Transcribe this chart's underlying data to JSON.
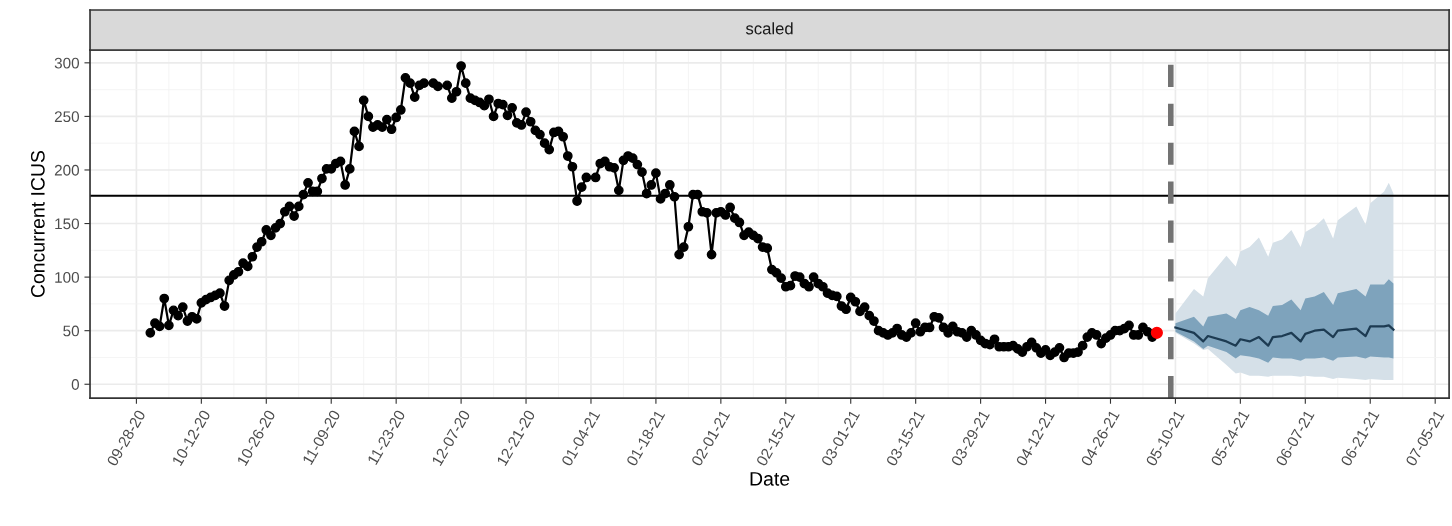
{
  "chart_data": {
    "type": "line",
    "title": "scaled",
    "xlabel": "Date",
    "ylabel": "Concurrent ICUS",
    "xlim": [
      "2020-09-18",
      "2021-07-08"
    ],
    "ylim": [
      -13,
      312
    ],
    "yticks": [
      0,
      50,
      100,
      150,
      200,
      250,
      300
    ],
    "xticks": [
      {
        "value": "2020-09-28",
        "label": "09-28-20"
      },
      {
        "value": "2020-10-12",
        "label": "10-12-20"
      },
      {
        "value": "2020-10-26",
        "label": "10-26-20"
      },
      {
        "value": "2020-11-09",
        "label": "11-09-20"
      },
      {
        "value": "2020-11-23",
        "label": "11-23-20"
      },
      {
        "value": "2020-12-07",
        "label": "12-07-20"
      },
      {
        "value": "2020-12-21",
        "label": "12-21-20"
      },
      {
        "value": "2021-01-04",
        "label": "01-04-21"
      },
      {
        "value": "2021-01-18",
        "label": "01-18-21"
      },
      {
        "value": "2021-02-01",
        "label": "02-01-21"
      },
      {
        "value": "2021-02-15",
        "label": "02-15-21"
      },
      {
        "value": "2021-03-01",
        "label": "03-01-21"
      },
      {
        "value": "2021-03-15",
        "label": "03-15-21"
      },
      {
        "value": "2021-03-29",
        "label": "03-29-21"
      },
      {
        "value": "2021-04-12",
        "label": "04-12-21"
      },
      {
        "value": "2021-04-26",
        "label": "04-26-21"
      },
      {
        "value": "2021-05-10",
        "label": "05-10-21"
      },
      {
        "value": "2021-05-24",
        "label": "05-24-21"
      },
      {
        "value": "2021-06-07",
        "label": "06-07-21"
      },
      {
        "value": "2021-06-21",
        "label": "06-21-21"
      },
      {
        "value": "2021-07-05",
        "label": "07-05-21"
      }
    ],
    "grid": true,
    "line_style": "solid",
    "ref_lines": [
      {
        "axis": "y",
        "value": 176,
        "color": "#000000",
        "line_style": "solid"
      },
      {
        "axis": "x",
        "value": "2021-05-09",
        "color": "#737373",
        "line_style": "dashed"
      }
    ],
    "series": [
      {
        "color": "#000000",
        "marker": "circle",
        "x": [
          "2020-10-01",
          "2020-10-02",
          "2020-10-03",
          "2020-10-04",
          "2020-10-05",
          "2020-10-06",
          "2020-10-07",
          "2020-10-08",
          "2020-10-09",
          "2020-10-10",
          "2020-10-11",
          "2020-10-12",
          "2020-10-13",
          "2020-10-14",
          "2020-10-15",
          "2020-10-16",
          "2020-10-17",
          "2020-10-18",
          "2020-10-19",
          "2020-10-20",
          "2020-10-21",
          "2020-10-22",
          "2020-10-23",
          "2020-10-24",
          "2020-10-25",
          "2020-10-26",
          "2020-10-27",
          "2020-10-28",
          "2020-10-29",
          "2020-10-30",
          "2020-10-31",
          "2020-11-01",
          "2020-11-02",
          "2020-11-03",
          "2020-11-04",
          "2020-11-05",
          "2020-11-06",
          "2020-11-07",
          "2020-11-08",
          "2020-11-09",
          "2020-11-10",
          "2020-11-11",
          "2020-11-12",
          "2020-11-13",
          "2020-11-14",
          "2020-11-15",
          "2020-11-16",
          "2020-11-17",
          "2020-11-18",
          "2020-11-19",
          "2020-11-20",
          "2020-11-21",
          "2020-11-22",
          "2020-11-23",
          "2020-11-24",
          "2020-11-25",
          "2020-11-26",
          "2020-11-27",
          "2020-11-28",
          "2020-11-29",
          "2020-12-01",
          "2020-12-02",
          "2020-12-04",
          "2020-12-05",
          "2020-12-06",
          "2020-12-07",
          "2020-12-08",
          "2020-12-09",
          "2020-12-10",
          "2020-12-11",
          "2020-12-12",
          "2020-12-13",
          "2020-12-14",
          "2020-12-15",
          "2020-12-16",
          "2020-12-17",
          "2020-12-18",
          "2020-12-19",
          "2020-12-20",
          "2020-12-21",
          "2020-12-22",
          "2020-12-23",
          "2020-12-24",
          "2020-12-25",
          "2020-12-26",
          "2020-12-27",
          "2020-12-28",
          "2020-12-29",
          "2020-12-30",
          "2020-12-31",
          "2021-01-01",
          "2021-01-02",
          "2021-01-03",
          "2021-01-05",
          "2021-01-06",
          "2021-01-07",
          "2021-01-08",
          "2021-01-09",
          "2021-01-10",
          "2021-01-11",
          "2021-01-12",
          "2021-01-13",
          "2021-01-14",
          "2021-01-15",
          "2021-01-16",
          "2021-01-17",
          "2021-01-18",
          "2021-01-19",
          "2021-01-20",
          "2021-01-21",
          "2021-01-22",
          "2021-01-23",
          "2021-01-24",
          "2021-01-25",
          "2021-01-26",
          "2021-01-27",
          "2021-01-28",
          "2021-01-29",
          "2021-01-30",
          "2021-01-31",
          "2021-02-01",
          "2021-02-02",
          "2021-02-03",
          "2021-02-04",
          "2021-02-05",
          "2021-02-06",
          "2021-02-07",
          "2021-02-08",
          "2021-02-09",
          "2021-02-10",
          "2021-02-11",
          "2021-02-12",
          "2021-02-13",
          "2021-02-14",
          "2021-02-15",
          "2021-02-16",
          "2021-02-17",
          "2021-02-18",
          "2021-02-19",
          "2021-02-20",
          "2021-02-21",
          "2021-02-22",
          "2021-02-23",
          "2021-02-24",
          "2021-02-25",
          "2021-02-26",
          "2021-02-27",
          "2021-02-28",
          "2021-03-01",
          "2021-03-02",
          "2021-03-03",
          "2021-03-04",
          "2021-03-05",
          "2021-03-06",
          "2021-03-07",
          "2021-03-08",
          "2021-03-09",
          "2021-03-10",
          "2021-03-11",
          "2021-03-12",
          "2021-03-13",
          "2021-03-14",
          "2021-03-15",
          "2021-03-16",
          "2021-03-17",
          "2021-03-18",
          "2021-03-19",
          "2021-03-20",
          "2021-03-21",
          "2021-03-22",
          "2021-03-23",
          "2021-03-24",
          "2021-03-25",
          "2021-03-26",
          "2021-03-27",
          "2021-03-28",
          "2021-03-29",
          "2021-03-30",
          "2021-03-31",
          "2021-04-01",
          "2021-04-02",
          "2021-04-03",
          "2021-04-04",
          "2021-04-05",
          "2021-04-06",
          "2021-04-07",
          "2021-04-08",
          "2021-04-09",
          "2021-04-10",
          "2021-04-11",
          "2021-04-12",
          "2021-04-13",
          "2021-04-14",
          "2021-04-15",
          "2021-04-16",
          "2021-04-17",
          "2021-04-18",
          "2021-04-19",
          "2021-04-20",
          "2021-04-21",
          "2021-04-22",
          "2021-04-23",
          "2021-04-24",
          "2021-04-25",
          "2021-04-26",
          "2021-04-27",
          "2021-04-28",
          "2021-04-29",
          "2021-04-30",
          "2021-05-01",
          "2021-05-02",
          "2021-05-03",
          "2021-05-04",
          "2021-05-05"
        ],
        "values": [
          48,
          57,
          54,
          80,
          55,
          69,
          64,
          72,
          59,
          63,
          61,
          76,
          79,
          81,
          83,
          85,
          73,
          97,
          102,
          105,
          113,
          110,
          119,
          128,
          133,
          144,
          139,
          146,
          150,
          161,
          166,
          157,
          166,
          177,
          188,
          180,
          180,
          192,
          201,
          201,
          206,
          208,
          186,
          201,
          236,
          222,
          265,
          250,
          240,
          242,
          240,
          247,
          238,
          249,
          256,
          286,
          281,
          268,
          279,
          281,
          281,
          278,
          279,
          267,
          273,
          297,
          281,
          267,
          265,
          263,
          260,
          266,
          250,
          262,
          261,
          251,
          258,
          244,
          242,
          254,
          245,
          237,
          233,
          225,
          219,
          235,
          236,
          231,
          213,
          203,
          171,
          184,
          193,
          193,
          206,
          208,
          203,
          202,
          181,
          209,
          213,
          211,
          205,
          198,
          178,
          186,
          197,
          173,
          178,
          186,
          175,
          121,
          128,
          147,
          177,
          177,
          161,
          160,
          121,
          160,
          161,
          158,
          165,
          155,
          151,
          139,
          142,
          139,
          136,
          128,
          127,
          107,
          104,
          99,
          91,
          92,
          101,
          100,
          94,
          91,
          100,
          94,
          91,
          85,
          83,
          82,
          73,
          70,
          81,
          77,
          68,
          72,
          64,
          59,
          50,
          48,
          46,
          48,
          52,
          46,
          44,
          48,
          57,
          49,
          53,
          53,
          63,
          62,
          53,
          48,
          54,
          49,
          48,
          44,
          50,
          46,
          41,
          38,
          37,
          42,
          35,
          35,
          35,
          36,
          33,
          30,
          35,
          39,
          34,
          29,
          32,
          27,
          30,
          34,
          25,
          29,
          29,
          30,
          36,
          44,
          48,
          46,
          38,
          43,
          46,
          50,
          50,
          52,
          55,
          46,
          46,
          53,
          49,
          44
        ]
      },
      {
        "type": "scatter",
        "color": "#ff0000",
        "marker": "circle",
        "x": [
          "2021-05-06"
        ],
        "values": [
          48
        ]
      },
      {
        "color": "#d5e0e8",
        "marker": "none",
        "x": [
          "2021-05-10",
          "2021-05-14",
          "2021-05-16",
          "2021-05-17",
          "2021-05-21",
          "2021-05-23",
          "2021-05-24",
          "2021-05-26",
          "2021-05-28",
          "2021-05-30",
          "2021-05-31",
          "2021-06-02",
          "2021-06-04",
          "2021-06-06",
          "2021-06-07",
          "2021-06-09",
          "2021-06-11",
          "2021-06-13",
          "2021-06-14",
          "2021-06-18",
          "2021-06-20",
          "2021-06-21",
          "2021-06-24",
          "2021-06-25",
          "2021-06-26"
        ],
        "values": [
          null,
          null,
          null,
          null,
          null,
          null,
          null,
          null,
          null,
          null,
          null,
          null,
          null,
          null,
          null,
          null,
          null,
          null,
          null,
          null,
          null,
          null,
          null,
          null,
          null
        ],
        "lower": [
          48,
          38,
          32,
          33,
          18,
          10,
          11,
          8,
          8,
          7,
          8,
          8,
          8,
          7,
          8,
          7,
          7,
          5,
          6,
          5,
          4,
          5,
          4,
          4,
          4
        ],
        "upper": [
          66,
          89,
          82,
          99,
          120,
          110,
          124,
          128,
          137,
          119,
          132,
          135,
          144,
          128,
          142,
          147,
          155,
          136,
          153,
          166,
          149,
          169,
          180,
          188,
          178
        ]
      },
      {
        "color": "#7ea3bc",
        "marker": "none",
        "x": [
          "2021-05-10",
          "2021-05-14",
          "2021-05-16",
          "2021-05-17",
          "2021-05-21",
          "2021-05-23",
          "2021-05-24",
          "2021-05-26",
          "2021-05-28",
          "2021-05-30",
          "2021-05-31",
          "2021-06-02",
          "2021-06-04",
          "2021-06-06",
          "2021-06-07",
          "2021-06-09",
          "2021-06-11",
          "2021-06-13",
          "2021-06-14",
          "2021-06-18",
          "2021-06-20",
          "2021-06-21",
          "2021-06-24",
          "2021-06-25",
          "2021-06-26"
        ],
        "values": [
          null,
          null,
          null,
          null,
          null,
          null,
          null,
          null,
          null,
          null,
          null,
          null,
          null,
          null,
          null,
          null,
          null,
          null,
          null,
          null,
          null,
          null,
          null,
          null,
          null
        ],
        "lower": [
          49,
          40,
          33,
          36,
          30,
          24,
          27,
          26,
          24,
          20,
          25,
          24,
          24,
          22,
          24,
          24,
          25,
          22,
          25,
          26,
          24,
          26,
          25,
          25,
          24
        ],
        "upper": [
          57,
          63,
          54,
          63,
          66,
          61,
          69,
          72,
          69,
          64,
          73,
          74,
          79,
          69,
          80,
          82,
          86,
          74,
          85,
          89,
          82,
          93,
          93,
          98,
          94
        ]
      },
      {
        "color": "#1d3b52",
        "marker": "none",
        "x": [
          "2021-05-10",
          "2021-05-14",
          "2021-05-16",
          "2021-05-17",
          "2021-05-21",
          "2021-05-23",
          "2021-05-24",
          "2021-05-26",
          "2021-05-28",
          "2021-05-30",
          "2021-05-31",
          "2021-06-02",
          "2021-06-04",
          "2021-06-06",
          "2021-06-07",
          "2021-06-09",
          "2021-06-11",
          "2021-06-13",
          "2021-06-14",
          "2021-06-18",
          "2021-06-20",
          "2021-06-21",
          "2021-06-24",
          "2021-06-25",
          "2021-06-26"
        ],
        "values": [
          53,
          48,
          40,
          45,
          40,
          36,
          42,
          40,
          44,
          36,
          44,
          45,
          48,
          40,
          47,
          50,
          51,
          44,
          50,
          52,
          45,
          54,
          54,
          55,
          51
        ]
      }
    ]
  }
}
